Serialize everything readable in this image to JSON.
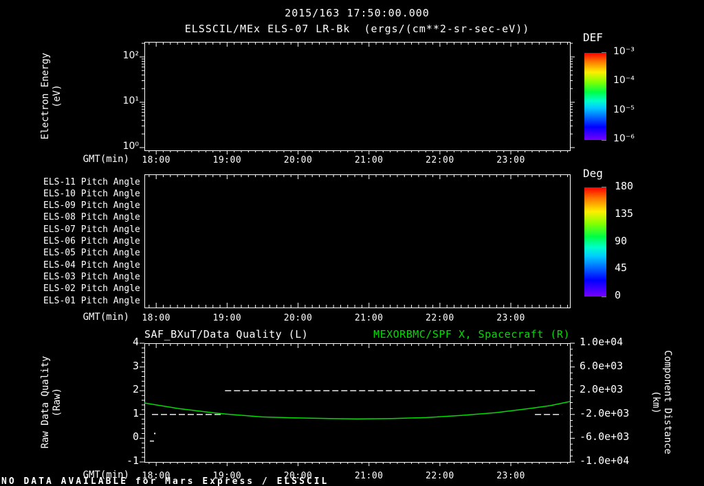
{
  "header": {
    "timestamp": "2015/163 17:50:00.000",
    "title": "ELSSCIL/MEx ELS-07 LR-Bk  (ergs/(cm**2-sr-sec-eV))"
  },
  "footer": {
    "status": "NO DATA AVAILABLE for Mars Express / ELSSCIL"
  },
  "colors": {
    "background": "#000000",
    "foreground": "#ffffff",
    "series_green": "#00dd00"
  },
  "chart_data": {
    "x_axis": {
      "label": "GMT(min)",
      "tick_labels": [
        "18:00",
        "19:00",
        "20:00",
        "21:00",
        "22:00",
        "23:00"
      ],
      "tick_hours": [
        18,
        19,
        20,
        21,
        22,
        23
      ],
      "range_hours": [
        17.8333,
        23.8333
      ],
      "minor_interval_hours": 0.1
    },
    "panels": [
      {
        "id": "electron-energy-spectrogram",
        "type": "heatmap",
        "ylabel_line1": "Electron Energy",
        "ylabel_line2": "(eV)",
        "y_scale": "log",
        "y_tick_labels": [
          "10²",
          "10¹",
          "10⁰"
        ],
        "y_tick_values": [
          100,
          10,
          1
        ],
        "y_range_ev": [
          0.87,
          215
        ],
        "colorbar": {
          "title": "DEF",
          "units": "ergs/(cm**2-sr-sec-eV)",
          "scale": "log",
          "tick_labels": [
            "10⁻³",
            "10⁻⁴",
            "10⁻⁵",
            "10⁻⁶"
          ],
          "tick_values": [
            0.001,
            0.0001,
            1e-05,
            1e-06
          ],
          "range": [
            1e-06,
            0.001
          ]
        },
        "values": [],
        "note": "no data plotted"
      },
      {
        "id": "pitch-angle-rows",
        "type": "heatmap",
        "row_labels": [
          "ELS-11 Pitch Angle",
          "ELS-10 Pitch Angle",
          "ELS-09 Pitch Angle",
          "ELS-08 Pitch Angle",
          "ELS-07 Pitch Angle",
          "ELS-06 Pitch Angle",
          "ELS-05 Pitch Angle",
          "ELS-04 Pitch Angle",
          "ELS-03 Pitch Angle",
          "ELS-02 Pitch Angle",
          "ELS-01 Pitch Angle"
        ],
        "colorbar": {
          "title": "Deg",
          "scale": "linear",
          "tick_labels": [
            "180",
            "135",
            "90",
            "45",
            "0"
          ],
          "tick_values": [
            180,
            135,
            90,
            45,
            0
          ],
          "range": [
            0,
            180
          ],
          "minor_step": 9
        },
        "values": [],
        "note": "no data plotted"
      },
      {
        "id": "quality-and-spacecraft-distance",
        "type": "line",
        "title_left": "SAF_BXuT/Data Quality (L)",
        "title_right": "MEXORBMC/SPF X, Spacecraft (R)",
        "left_axis": {
          "label_line1": "Raw Data Quality",
          "label_line2": "(Raw)",
          "tick_labels": [
            "4",
            "3",
            "2",
            "1",
            "0",
            "-1"
          ],
          "tick_values": [
            4,
            3,
            2,
            1,
            0,
            -1
          ],
          "range": [
            -1,
            4
          ],
          "minor_step": 0.2
        },
        "right_axis": {
          "label_line1": "Component Distance",
          "label_line2": "(km)",
          "tick_labels": [
            "1.0e+04",
            "6.0e+03",
            "2.0e+03",
            "-2.0e+03",
            "-6.0e+03",
            "-1.0e+04"
          ],
          "tick_values": [
            10000,
            6000,
            2000,
            -2000,
            -6000,
            -10000
          ],
          "range": [
            -10000,
            10000
          ],
          "minor_step": 1000
        },
        "series": [
          {
            "name": "SAF_BXuT/Data Quality",
            "axis": "left",
            "color": "#ffffff",
            "style": "dashed",
            "segments": [
              {
                "value": 1,
                "start_hour": 17.94,
                "end_hour": 18.94
              },
              {
                "value": 2,
                "start_hour": 18.97,
                "end_hour": 23.34
              },
              {
                "value": 1,
                "start_hour": 23.34,
                "end_hour": 23.72
              }
            ],
            "marks": [
              {
                "hour": 17.98,
                "value": 0.2,
                "shape": "dot"
              },
              {
                "hour": 17.94,
                "value": -0.12,
                "shape": "dash"
              }
            ]
          },
          {
            "name": "MEXORBMC/SPF X Spacecraft",
            "axis": "right",
            "color": "#00dd00",
            "style": "solid",
            "points_hour_km": [
              [
                17.83,
                -60
              ],
              [
                18.31,
                -990
              ],
              [
                18.8,
                -1700
              ],
              [
                18.99,
                -1930
              ],
              [
                19.48,
                -2400
              ],
              [
                19.96,
                -2570
              ],
              [
                20.45,
                -2690
              ],
              [
                20.83,
                -2750
              ],
              [
                21.32,
                -2690
              ],
              [
                21.81,
                -2515
              ],
              [
                22.29,
                -2165
              ],
              [
                22.78,
                -1700
              ],
              [
                23.26,
                -990
              ],
              [
                23.55,
                -525
              ],
              [
                23.83,
                175
              ]
            ]
          }
        ]
      }
    ]
  }
}
